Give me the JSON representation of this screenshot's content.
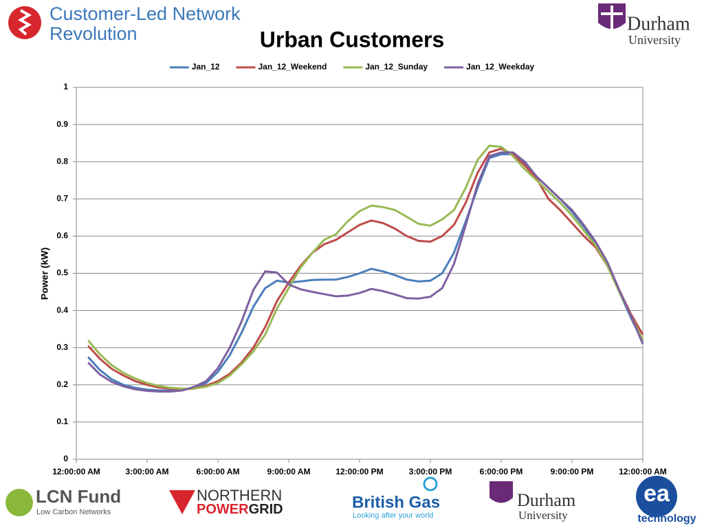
{
  "header": {
    "brand_line1": "Customer-Led Network",
    "brand_line2": "Revolution",
    "university_name": "Durham",
    "university_sub": "University"
  },
  "footer": {
    "lcn_name": "LCN Fund",
    "lcn_sub": "Low Carbon Networks",
    "npg_line1": "NORTHERN",
    "npg_line2a": "POWER",
    "npg_line2b": "GRID",
    "bg_name": "British Gas",
    "bg_sub": "Looking after your world",
    "durham_name": "Durham",
    "durham_sub": "University",
    "ea_mark": "ea",
    "ea_sub": "technology"
  },
  "chart_data": {
    "type": "line",
    "title": "Urban Customers",
    "y_label": "Power (kW)",
    "x": [
      0.5,
      1,
      1.5,
      2,
      2.5,
      3,
      3.5,
      4,
      4.5,
      5,
      5.5,
      6,
      6.5,
      7,
      7.5,
      8,
      8.5,
      9,
      9.5,
      10,
      10.5,
      11,
      11.5,
      12,
      12.5,
      13,
      13.5,
      14,
      14.5,
      15,
      15.5,
      16,
      16.5,
      17,
      17.5,
      18,
      18.5,
      19,
      19.5,
      20,
      20.5,
      21,
      21.5,
      22,
      22.5,
      23,
      23.5,
      24
    ],
    "xlim": [
      0,
      24
    ],
    "xticks": [
      {
        "value": 0,
        "label": "12:00:00 AM"
      },
      {
        "value": 3,
        "label": "3:00:00 AM"
      },
      {
        "value": 6,
        "label": "6:00:00 AM"
      },
      {
        "value": 9,
        "label": "9:00:00 AM"
      },
      {
        "value": 12,
        "label": "12:00:00 PM"
      },
      {
        "value": 15,
        "label": "3:00:00 PM"
      },
      {
        "value": 18,
        "label": "6:00:00 PM"
      },
      {
        "value": 21,
        "label": "9:00:00 PM"
      },
      {
        "value": 24,
        "label": "12:00:00 AM"
      }
    ],
    "ylim": [
      0,
      1
    ],
    "yticks": [
      0,
      0.1,
      0.2,
      0.3,
      0.4,
      0.5,
      0.6,
      0.7,
      0.8,
      0.9,
      1
    ],
    "grid": true,
    "legend": "top",
    "series": [
      {
        "name": "Jan_12",
        "color": "#4a7ebb",
        "values": [
          0.275,
          0.24,
          0.215,
          0.2,
          0.192,
          0.187,
          0.185,
          0.185,
          0.187,
          0.192,
          0.205,
          0.235,
          0.28,
          0.34,
          0.41,
          0.46,
          0.48,
          0.475,
          0.478,
          0.482,
          0.483,
          0.483,
          0.49,
          0.5,
          0.512,
          0.505,
          0.495,
          0.483,
          0.478,
          0.48,
          0.5,
          0.555,
          0.64,
          0.73,
          0.81,
          0.82,
          0.82,
          0.795,
          0.76,
          0.73,
          0.7,
          0.665,
          0.625,
          0.58,
          0.525,
          0.45,
          0.38,
          0.315
        ]
      },
      {
        "name": "Jan_12_Weekend",
        "color": "#be4b48",
        "values": [
          0.305,
          0.27,
          0.243,
          0.225,
          0.21,
          0.2,
          0.193,
          0.19,
          0.188,
          0.19,
          0.198,
          0.21,
          0.23,
          0.26,
          0.3,
          0.355,
          0.425,
          0.475,
          0.52,
          0.555,
          0.578,
          0.59,
          0.61,
          0.63,
          0.642,
          0.635,
          0.62,
          0.6,
          0.587,
          0.585,
          0.6,
          0.63,
          0.69,
          0.77,
          0.825,
          0.835,
          0.82,
          0.79,
          0.755,
          0.7,
          0.67,
          0.635,
          0.6,
          0.57,
          0.52,
          0.455,
          0.39,
          0.335
        ]
      },
      {
        "name": "Jan_12_Sunday",
        "color": "#98b954",
        "values": [
          0.32,
          0.282,
          0.253,
          0.232,
          0.217,
          0.205,
          0.197,
          0.192,
          0.19,
          0.19,
          0.195,
          0.205,
          0.225,
          0.255,
          0.29,
          0.335,
          0.405,
          0.46,
          0.515,
          0.555,
          0.59,
          0.605,
          0.64,
          0.667,
          0.682,
          0.678,
          0.67,
          0.652,
          0.633,
          0.628,
          0.645,
          0.67,
          0.73,
          0.805,
          0.843,
          0.84,
          0.815,
          0.78,
          0.75,
          0.72,
          0.69,
          0.655,
          0.615,
          0.575,
          0.52,
          0.45,
          0.385,
          0.32
        ]
      },
      {
        "name": "Jan_12_Weekday",
        "color": "#7d60a0",
        "values": [
          0.26,
          0.228,
          0.208,
          0.196,
          0.188,
          0.184,
          0.182,
          0.182,
          0.185,
          0.195,
          0.21,
          0.245,
          0.3,
          0.37,
          0.455,
          0.505,
          0.502,
          0.47,
          0.457,
          0.45,
          0.444,
          0.438,
          0.44,
          0.447,
          0.458,
          0.452,
          0.443,
          0.433,
          0.432,
          0.437,
          0.46,
          0.525,
          0.63,
          0.74,
          0.815,
          0.825,
          0.825,
          0.8,
          0.76,
          0.73,
          0.7,
          0.67,
          0.63,
          0.585,
          0.53,
          0.455,
          0.385,
          0.31
        ]
      }
    ]
  }
}
